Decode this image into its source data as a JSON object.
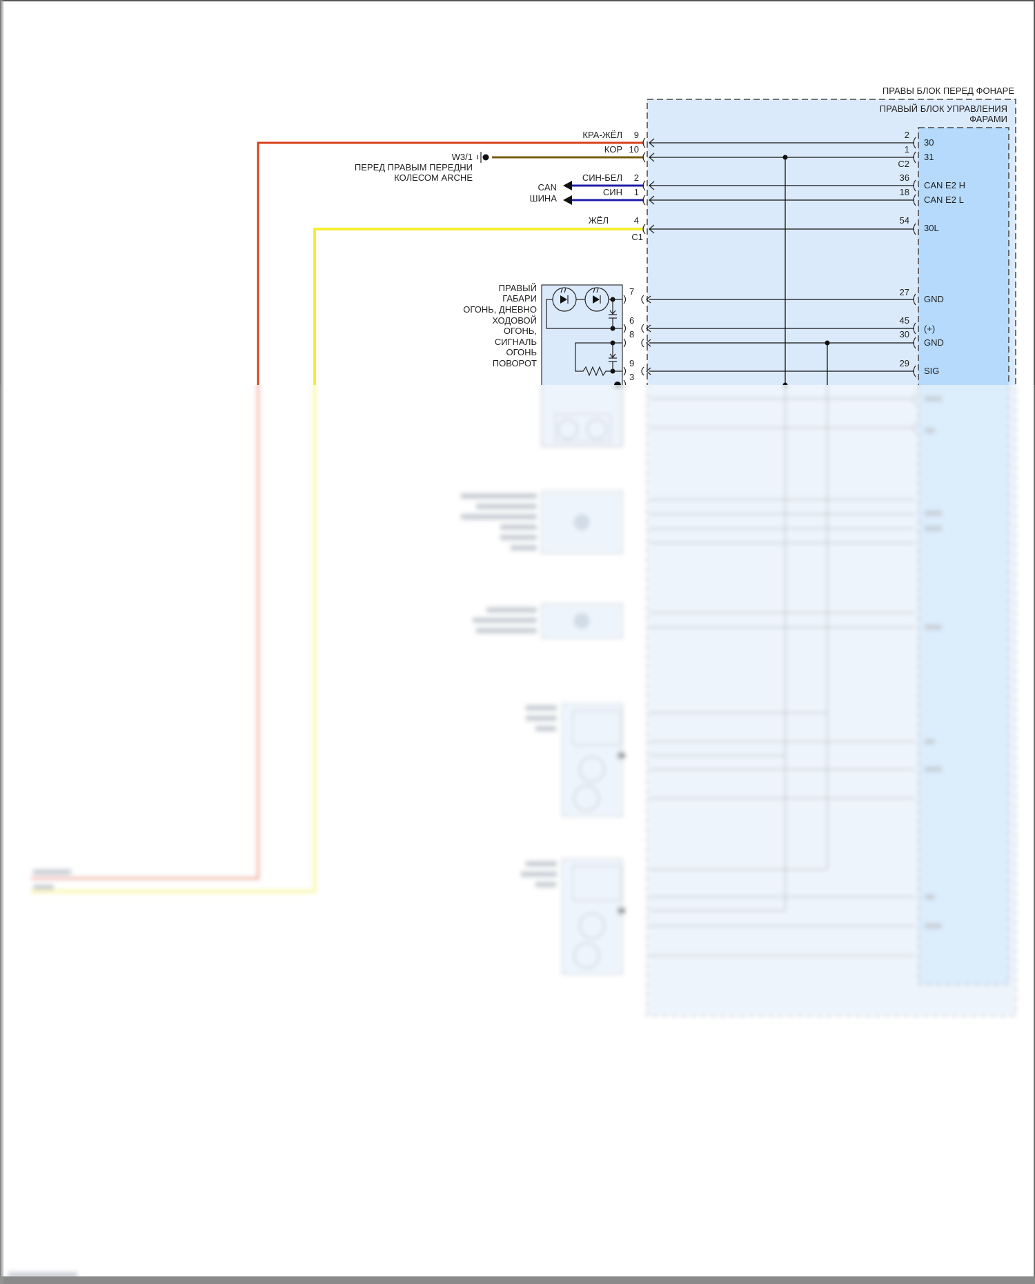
{
  "module": {
    "outer_title": "ПРАВЫ БЛОК ПЕРЕД ФОНАРЕ",
    "inner_title_line1": "ПРАВЫЙ БЛОК УПРАВЛЕНИЯ",
    "inner_title_line2": "ФАРАМИ",
    "connector_c1": "C1",
    "connector_c2": "C2",
    "pins": [
      {
        "num": "2",
        "signal": "30"
      },
      {
        "num": "1",
        "signal": "31"
      },
      {
        "num": "36",
        "signal": "CAN E2 H"
      },
      {
        "num": "18",
        "signal": "CAN E2 L"
      },
      {
        "num": "54",
        "signal": "30L"
      },
      {
        "num": "27",
        "signal": "GND"
      },
      {
        "num": "45",
        "signal": "(+)"
      },
      {
        "num": "30",
        "signal": "GND"
      },
      {
        "num": "29",
        "signal": "SIG"
      }
    ]
  },
  "harness_wires": [
    {
      "color_label": "КРА-ЖЁЛ",
      "pin": "9"
    },
    {
      "color_label": "КОР",
      "pin": "10"
    },
    {
      "color_label": "СИН-БЕЛ",
      "pin": "2"
    },
    {
      "color_label": "СИН",
      "pin": "1"
    },
    {
      "color_label": "ЖЁЛ",
      "pin": "4"
    }
  ],
  "ground": {
    "label": "W3/1",
    "location_line1": "ПЕРЕД ПРАВЫМ ПЕРЕДНИ",
    "location_line2": "КОЛЕСОМ ARCHE"
  },
  "can_bus": {
    "line1": "CAN",
    "line2": "ШИНА"
  },
  "lamp": {
    "label_lines": [
      "ПРАВЫЙ",
      "ГАБАРИ",
      "ОГОНЬ, ДНЕВНО",
      "ХОДОВОЙ",
      "ОГОНЬ,",
      "СИГНАЛЬ",
      "ОГОНЬ",
      "ПОВОРОТ"
    ],
    "pins": [
      "7",
      "6",
      "8",
      "9",
      "3"
    ]
  },
  "colors": {
    "red_yellow_wire": "#d8401c",
    "brown_wire": "#7a5c12",
    "blue_wire": "#1c1ca8",
    "yellow_wire": "#f4ee2e",
    "module_fill": "#dbeafb",
    "ecu_fill": "#b6dafb"
  }
}
